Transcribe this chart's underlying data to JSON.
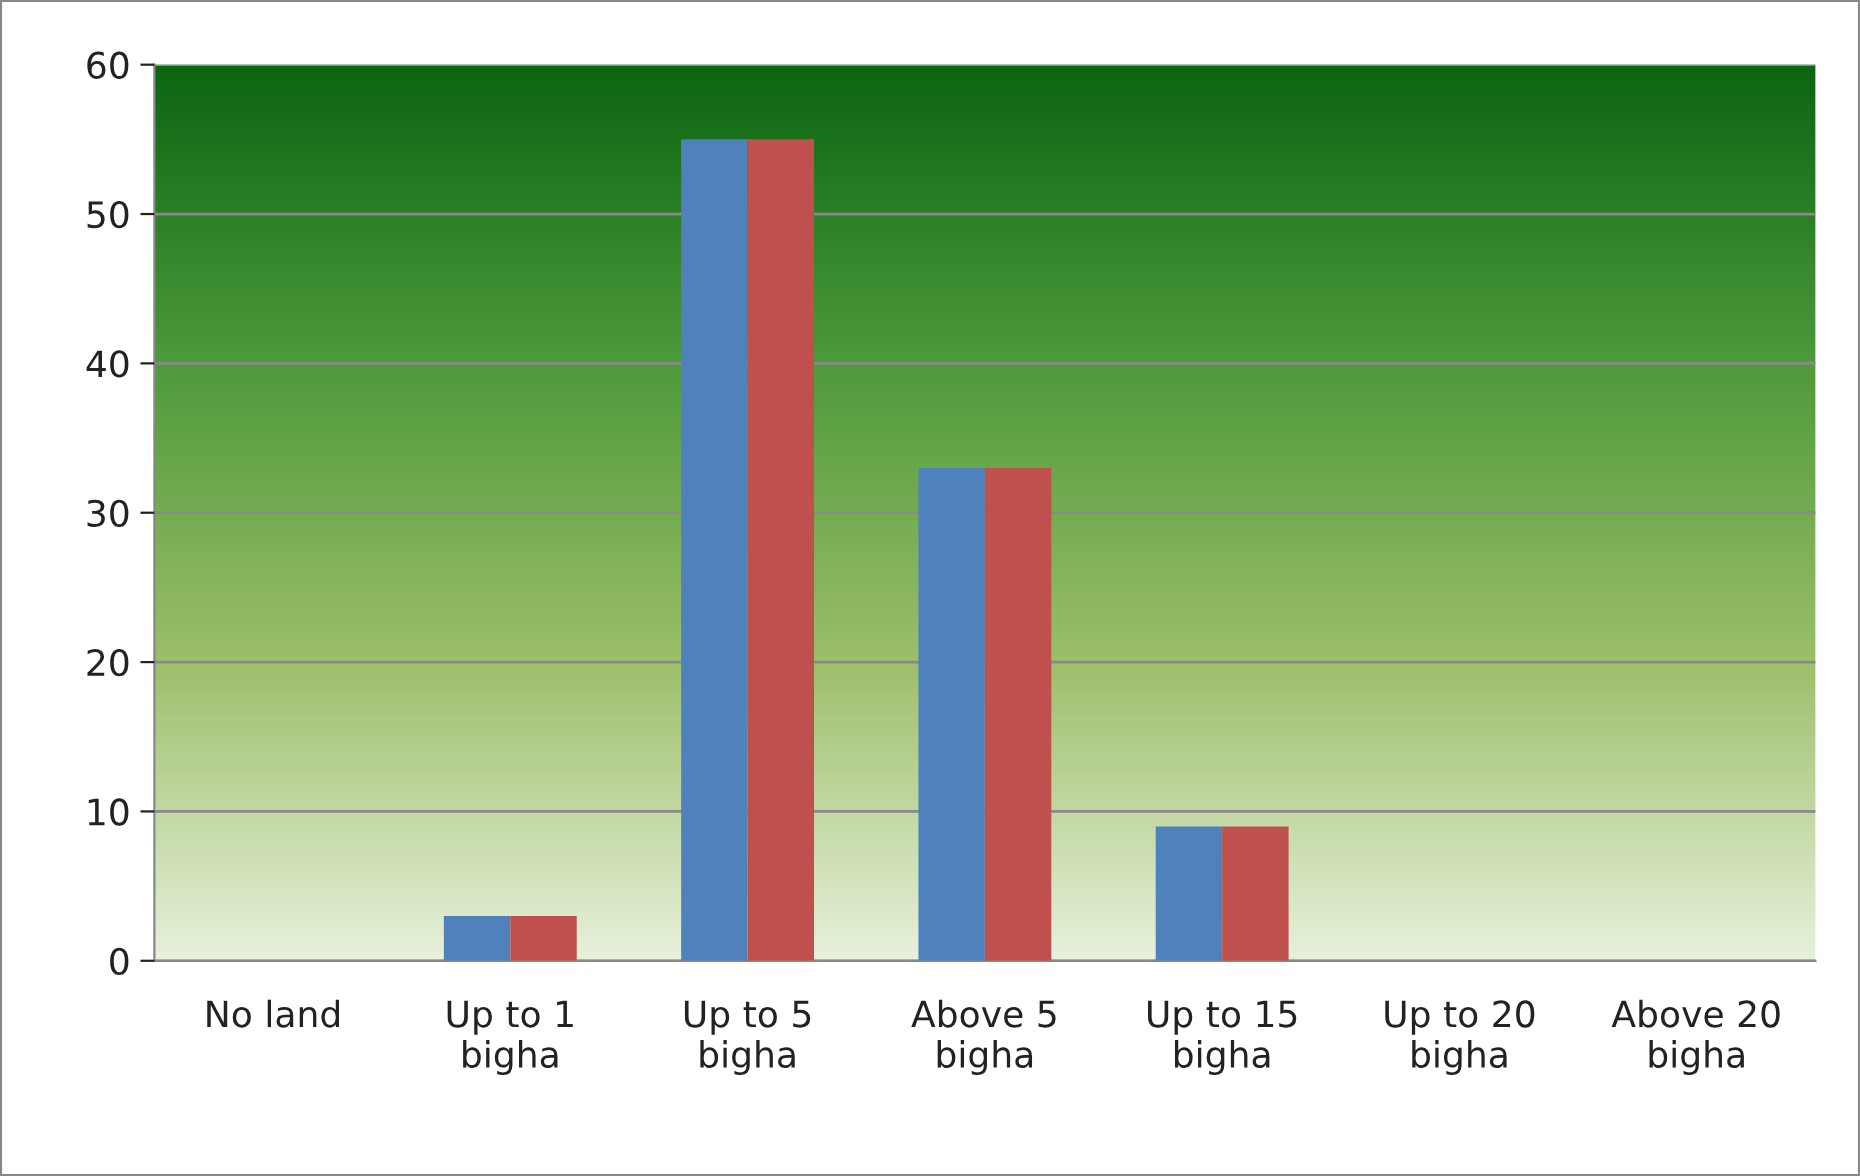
{
  "chart_data": {
    "type": "bar",
    "categories": [
      "No land",
      "Up to 1\nbigha",
      "Up to 5\nbigha",
      "Above 5\nbigha",
      "Up to 15\nbigha",
      "Up to 20\nbigha",
      "Above 20\nbigha"
    ],
    "series": [
      {
        "color": "#4f81bd",
        "values": [
          0,
          3,
          55,
          33,
          9,
          0,
          0
        ]
      },
      {
        "color": "#c0504d",
        "values": [
          0,
          3,
          55,
          33,
          9,
          0,
          0
        ]
      }
    ],
    "ylim": [
      0,
      60
    ],
    "yticks": [
      0,
      10,
      20,
      30,
      40,
      50,
      60
    ],
    "grid": "y",
    "legend": false
  }
}
